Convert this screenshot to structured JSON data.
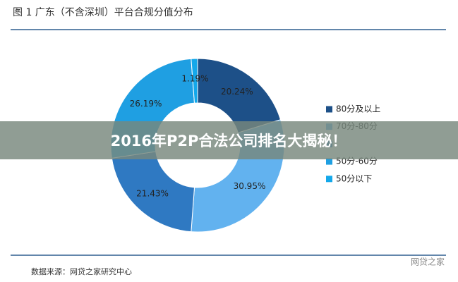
{
  "chart_data": {
    "type": "donut",
    "title": "图 1 广东（不含深圳）平台合规分值分布",
    "categories": [
      "80分及以上",
      "70分-80分",
      null,
      "50分-60分",
      "50分以下"
    ],
    "values": [
      20.24,
      30.95,
      21.43,
      26.19,
      1.19
    ],
    "value_labels": [
      "20.24%",
      "30.95%",
      "21.43%",
      "26.19%",
      "1.19%"
    ],
    "colors": [
      "#1d5088",
      "#62b2ef",
      "#2f79c2",
      "#1f9fe2",
      "#14a8ea"
    ],
    "source": "数据来源：网贷之家研究中心"
  },
  "banner": "2016年P2P合法公司排名大揭秘！",
  "watermark": "网贷之家"
}
